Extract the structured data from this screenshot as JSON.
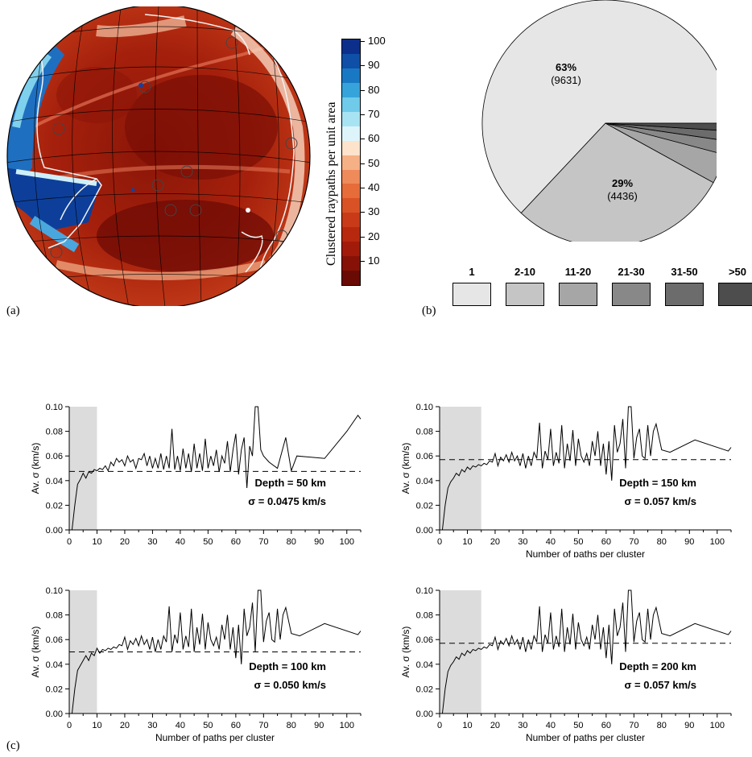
{
  "panel_labels": {
    "a": "(a)",
    "b": "(b)",
    "c": "(c)"
  },
  "colorbar": {
    "label": "Clustered raypaths per unit area",
    "ticks": [
      "100",
      "90",
      "80",
      "70",
      "60",
      "50",
      "40",
      "30",
      "20",
      "10"
    ],
    "colors": [
      "#6a0a05",
      "#861207",
      "#a21b0a",
      "#b8280f",
      "#c83a18",
      "#d85226",
      "#e66c3a",
      "#ef8a5a",
      "#f6b085",
      "#fde3cb",
      "#def4fb",
      "#a8e3f3",
      "#6fcbe9",
      "#36a4da",
      "#1978c4",
      "#0f4fa8",
      "#0b2f8a"
    ]
  },
  "pie": {
    "slices": [
      {
        "label": "1",
        "percent": 63,
        "count": 9631,
        "pct_text": "63%",
        "count_text": "(9631)",
        "color": "#e6e6e6"
      },
      {
        "label": "2-10",
        "percent": 29,
        "count": 4436,
        "pct_text": "29%",
        "count_text": "(4436)",
        "color": "#c5c5c5"
      },
      {
        "label": "11-20",
        "percent": 3.9,
        "color": "#a6a6a6"
      },
      {
        "label": "21-30",
        "percent": 1.8,
        "color": "#888888"
      },
      {
        "label": "31-50",
        "percent": 1.3,
        "color": "#6c6c6c"
      },
      {
        "label": ">50",
        "percent": 1.0,
        "color": "#4d4d4d"
      }
    ]
  },
  "chart_data": [
    {
      "type": "line",
      "annotation": "Depth = 50 km",
      "sigma_text": "σ = 0.0475 km/s",
      "ylabel": "Av. σ (km/s)",
      "xlabel": "",
      "xlim": [
        0,
        105
      ],
      "ylim": [
        0,
        0.1
      ],
      "xticks": [
        "0",
        "10",
        "20",
        "30",
        "40",
        "50",
        "60",
        "70",
        "80",
        "90",
        "100"
      ],
      "yticks": [
        "0.00",
        "0.02",
        "0.04",
        "0.06",
        "0.08",
        "0.10"
      ],
      "shade_to": 10,
      "dashed_y": 0.0475,
      "series": [
        {
          "x": [
            1,
            2,
            3,
            4,
            5,
            6,
            7,
            8,
            9,
            10,
            11,
            12,
            13,
            14,
            15,
            16,
            17,
            18,
            19,
            20,
            21,
            22,
            23,
            24,
            25,
            26,
            27,
            28,
            29,
            30,
            31,
            32,
            33,
            34,
            35,
            36,
            37,
            38,
            39,
            40,
            41,
            42,
            43,
            44,
            45,
            46,
            47,
            48,
            49,
            50,
            51,
            52,
            53,
            54,
            55,
            56,
            57,
            58,
            59,
            60,
            61,
            62,
            63,
            64,
            65,
            66,
            67,
            68,
            69,
            70,
            72,
            75,
            78,
            80,
            82,
            92,
            100,
            104,
            105
          ],
          "y": [
            0,
            0.02,
            0.037,
            0.041,
            0.046,
            0.042,
            0.047,
            0.046,
            0.049,
            0.048,
            0.05,
            0.049,
            0.052,
            0.048,
            0.055,
            0.052,
            0.058,
            0.055,
            0.057,
            0.052,
            0.06,
            0.055,
            0.057,
            0.05,
            0.058,
            0.057,
            0.062,
            0.052,
            0.06,
            0.05,
            0.058,
            0.05,
            0.062,
            0.049,
            0.06,
            0.05,
            0.082,
            0.049,
            0.06,
            0.048,
            0.066,
            0.05,
            0.062,
            0.047,
            0.07,
            0.05,
            0.062,
            0.048,
            0.074,
            0.05,
            0.06,
            0.052,
            0.065,
            0.047,
            0.06,
            0.054,
            0.072,
            0.047,
            0.065,
            0.078,
            0.045,
            0.065,
            0.075,
            0.034,
            0.068,
            0.06,
            0.1,
            0.1,
            0.065,
            0.06,
            0.055,
            0.05,
            0.075,
            0.048,
            0.06,
            0.058,
            0.08,
            0.093,
            0.09
          ]
        }
      ]
    },
    {
      "type": "line",
      "annotation": "Depth = 150 km",
      "sigma_text": "σ = 0.057 km/s",
      "ylabel": "Av. σ (km/s)",
      "xlabel": "Number of paths per cluster",
      "xlim": [
        0,
        105
      ],
      "ylim": [
        0,
        0.1
      ],
      "xticks": [
        "0",
        "10",
        "20",
        "30",
        "40",
        "50",
        "60",
        "70",
        "80",
        "90",
        "100"
      ],
      "yticks": [
        "0.00",
        "0.02",
        "0.04",
        "0.06",
        "0.08",
        "0.10"
      ],
      "shade_to": 15,
      "dashed_y": 0.057,
      "series": [
        {
          "x": [
            1,
            2,
            3,
            4,
            5,
            6,
            7,
            8,
            9,
            10,
            11,
            12,
            13,
            14,
            15,
            16,
            17,
            18,
            19,
            20,
            21,
            22,
            23,
            24,
            25,
            26,
            27,
            28,
            29,
            30,
            31,
            32,
            33,
            34,
            35,
            36,
            37,
            38,
            39,
            40,
            41,
            42,
            43,
            44,
            45,
            46,
            47,
            48,
            49,
            50,
            51,
            52,
            53,
            54,
            55,
            56,
            57,
            58,
            59,
            60,
            61,
            62,
            63,
            64,
            65,
            66,
            67,
            68,
            69,
            70,
            71,
            72,
            73,
            74,
            75,
            76,
            77,
            78,
            80,
            83,
            92,
            104,
            105
          ],
          "y": [
            0,
            0.02,
            0.034,
            0.039,
            0.042,
            0.046,
            0.044,
            0.049,
            0.047,
            0.051,
            0.049,
            0.052,
            0.051,
            0.053,
            0.052,
            0.054,
            0.053,
            0.056,
            0.055,
            0.062,
            0.052,
            0.059,
            0.056,
            0.061,
            0.055,
            0.063,
            0.056,
            0.06,
            0.052,
            0.062,
            0.05,
            0.06,
            0.052,
            0.063,
            0.058,
            0.087,
            0.05,
            0.064,
            0.057,
            0.082,
            0.052,
            0.063,
            0.054,
            0.085,
            0.05,
            0.07,
            0.056,
            0.081,
            0.052,
            0.074,
            0.06,
            0.055,
            0.062,
            0.052,
            0.072,
            0.06,
            0.08,
            0.052,
            0.07,
            0.045,
            0.072,
            0.04,
            0.085,
            0.063,
            0.07,
            0.09,
            0.05,
            0.1,
            0.1,
            0.058,
            0.075,
            0.082,
            0.06,
            0.058,
            0.085,
            0.06,
            0.08,
            0.086,
            0.065,
            0.063,
            0.073,
            0.064,
            0.067
          ]
        }
      ]
    },
    {
      "type": "line",
      "annotation": "Depth = 100 km",
      "sigma_text": "σ = 0.050 km/s",
      "ylabel": "Av. σ (km/s)",
      "xlabel": "Number of paths per cluster",
      "xlim": [
        0,
        105
      ],
      "ylim": [
        0,
        0.1
      ],
      "xticks": [
        "0",
        "10",
        "20",
        "30",
        "40",
        "50",
        "60",
        "70",
        "80",
        "90",
        "100"
      ],
      "yticks": [
        "0.00",
        "0.02",
        "0.04",
        "0.06",
        "0.08",
        "0.10"
      ],
      "shade_to": 10,
      "dashed_y": 0.05,
      "series": [
        {
          "x": [
            1,
            2,
            3,
            4,
            5,
            6,
            7,
            8,
            9,
            10,
            11,
            12,
            13,
            14,
            15,
            16,
            17,
            18,
            19,
            20,
            21,
            22,
            23,
            24,
            25,
            26,
            27,
            28,
            29,
            30,
            31,
            32,
            33,
            34,
            35,
            36,
            37,
            38,
            39,
            40,
            41,
            42,
            43,
            44,
            45,
            46,
            47,
            48,
            49,
            50,
            51,
            52,
            53,
            54,
            55,
            56,
            57,
            58,
            59,
            60,
            61,
            62,
            63,
            64,
            65,
            66,
            67,
            68,
            69,
            70,
            71,
            72,
            73,
            74,
            75,
            76,
            77,
            78,
            80,
            83,
            92,
            104,
            105
          ],
          "y": [
            0,
            0.02,
            0.035,
            0.039,
            0.043,
            0.047,
            0.043,
            0.049,
            0.047,
            0.053,
            0.049,
            0.052,
            0.051,
            0.053,
            0.052,
            0.054,
            0.053,
            0.056,
            0.055,
            0.062,
            0.052,
            0.059,
            0.056,
            0.061,
            0.055,
            0.063,
            0.056,
            0.06,
            0.052,
            0.062,
            0.05,
            0.06,
            0.052,
            0.063,
            0.058,
            0.087,
            0.05,
            0.064,
            0.057,
            0.082,
            0.052,
            0.063,
            0.054,
            0.085,
            0.05,
            0.07,
            0.056,
            0.081,
            0.052,
            0.074,
            0.06,
            0.055,
            0.062,
            0.052,
            0.072,
            0.06,
            0.08,
            0.052,
            0.07,
            0.045,
            0.072,
            0.04,
            0.085,
            0.063,
            0.07,
            0.09,
            0.05,
            0.1,
            0.1,
            0.058,
            0.075,
            0.082,
            0.06,
            0.058,
            0.085,
            0.06,
            0.08,
            0.086,
            0.065,
            0.063,
            0.073,
            0.064,
            0.067
          ]
        }
      ]
    },
    {
      "type": "line",
      "annotation": "Depth = 200 km",
      "sigma_text": "σ = 0.057 km/s",
      "ylabel": "Av. σ (km/s)",
      "xlabel": "Number of paths per cluster",
      "xlim": [
        0,
        105
      ],
      "ylim": [
        0,
        0.1
      ],
      "xticks": [
        "0",
        "10",
        "20",
        "30",
        "40",
        "50",
        "60",
        "70",
        "80",
        "90",
        "100"
      ],
      "yticks": [
        "0.00",
        "0.02",
        "0.04",
        "0.06",
        "0.08",
        "0.10"
      ],
      "shade_to": 15,
      "dashed_y": 0.057,
      "series": [
        {
          "x": [
            1,
            2,
            3,
            4,
            5,
            6,
            7,
            8,
            9,
            10,
            11,
            12,
            13,
            14,
            15,
            16,
            17,
            18,
            19,
            20,
            21,
            22,
            23,
            24,
            25,
            26,
            27,
            28,
            29,
            30,
            31,
            32,
            33,
            34,
            35,
            36,
            37,
            38,
            39,
            40,
            41,
            42,
            43,
            44,
            45,
            46,
            47,
            48,
            49,
            50,
            51,
            52,
            53,
            54,
            55,
            56,
            57,
            58,
            59,
            60,
            61,
            62,
            63,
            64,
            65,
            66,
            67,
            68,
            69,
            70,
            71,
            72,
            73,
            74,
            75,
            76,
            77,
            78,
            80,
            83,
            92,
            104,
            105
          ],
          "y": [
            0,
            0.02,
            0.034,
            0.039,
            0.042,
            0.046,
            0.044,
            0.049,
            0.047,
            0.051,
            0.049,
            0.052,
            0.051,
            0.053,
            0.052,
            0.054,
            0.053,
            0.056,
            0.055,
            0.062,
            0.052,
            0.059,
            0.056,
            0.061,
            0.055,
            0.063,
            0.056,
            0.06,
            0.052,
            0.062,
            0.05,
            0.06,
            0.052,
            0.063,
            0.058,
            0.087,
            0.05,
            0.064,
            0.057,
            0.082,
            0.052,
            0.063,
            0.054,
            0.085,
            0.05,
            0.07,
            0.056,
            0.081,
            0.052,
            0.074,
            0.06,
            0.055,
            0.062,
            0.052,
            0.072,
            0.06,
            0.08,
            0.052,
            0.07,
            0.045,
            0.072,
            0.04,
            0.085,
            0.063,
            0.07,
            0.09,
            0.05,
            0.1,
            0.1,
            0.058,
            0.075,
            0.082,
            0.06,
            0.058,
            0.085,
            0.06,
            0.08,
            0.086,
            0.065,
            0.063,
            0.073,
            0.064,
            0.067
          ]
        }
      ]
    }
  ]
}
